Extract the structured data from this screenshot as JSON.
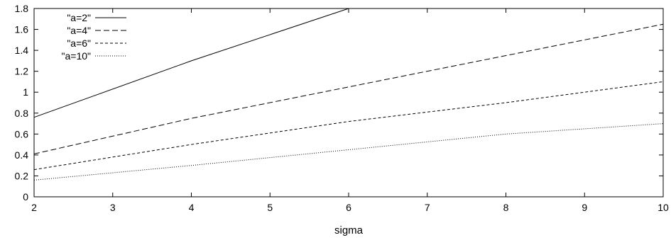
{
  "chart_data": {
    "type": "line",
    "title": "",
    "xlabel": "sigma",
    "ylabel": "",
    "xlim": [
      2,
      10
    ],
    "ylim": [
      0,
      1.8
    ],
    "xticks": [
      2,
      3,
      4,
      5,
      6,
      7,
      8,
      9,
      10
    ],
    "yticks": [
      0,
      0.2,
      0.4,
      0.6,
      0.8,
      1,
      1.2,
      1.4,
      1.6,
      1.8
    ],
    "legend_position": "top-left",
    "grid": false,
    "series": [
      {
        "name": "\"a=2\"",
        "dash": "solid",
        "x": [
          2,
          4,
          6
        ],
        "y": [
          0.76,
          1.3,
          1.8
        ]
      },
      {
        "name": "\"a=4\"",
        "dash": "dashed",
        "x": [
          2,
          4,
          6,
          8,
          10
        ],
        "y": [
          0.41,
          0.75,
          1.05,
          1.35,
          1.65
        ]
      },
      {
        "name": "\"a=6\"",
        "dash": "shortdash",
        "x": [
          2,
          4,
          6,
          8,
          10
        ],
        "y": [
          0.26,
          0.5,
          0.72,
          0.9,
          1.1
        ]
      },
      {
        "name": "\"a=10\"",
        "dash": "dotted",
        "x": [
          2,
          4,
          6,
          8,
          10
        ],
        "y": [
          0.16,
          0.3,
          0.45,
          0.6,
          0.7
        ]
      }
    ]
  }
}
